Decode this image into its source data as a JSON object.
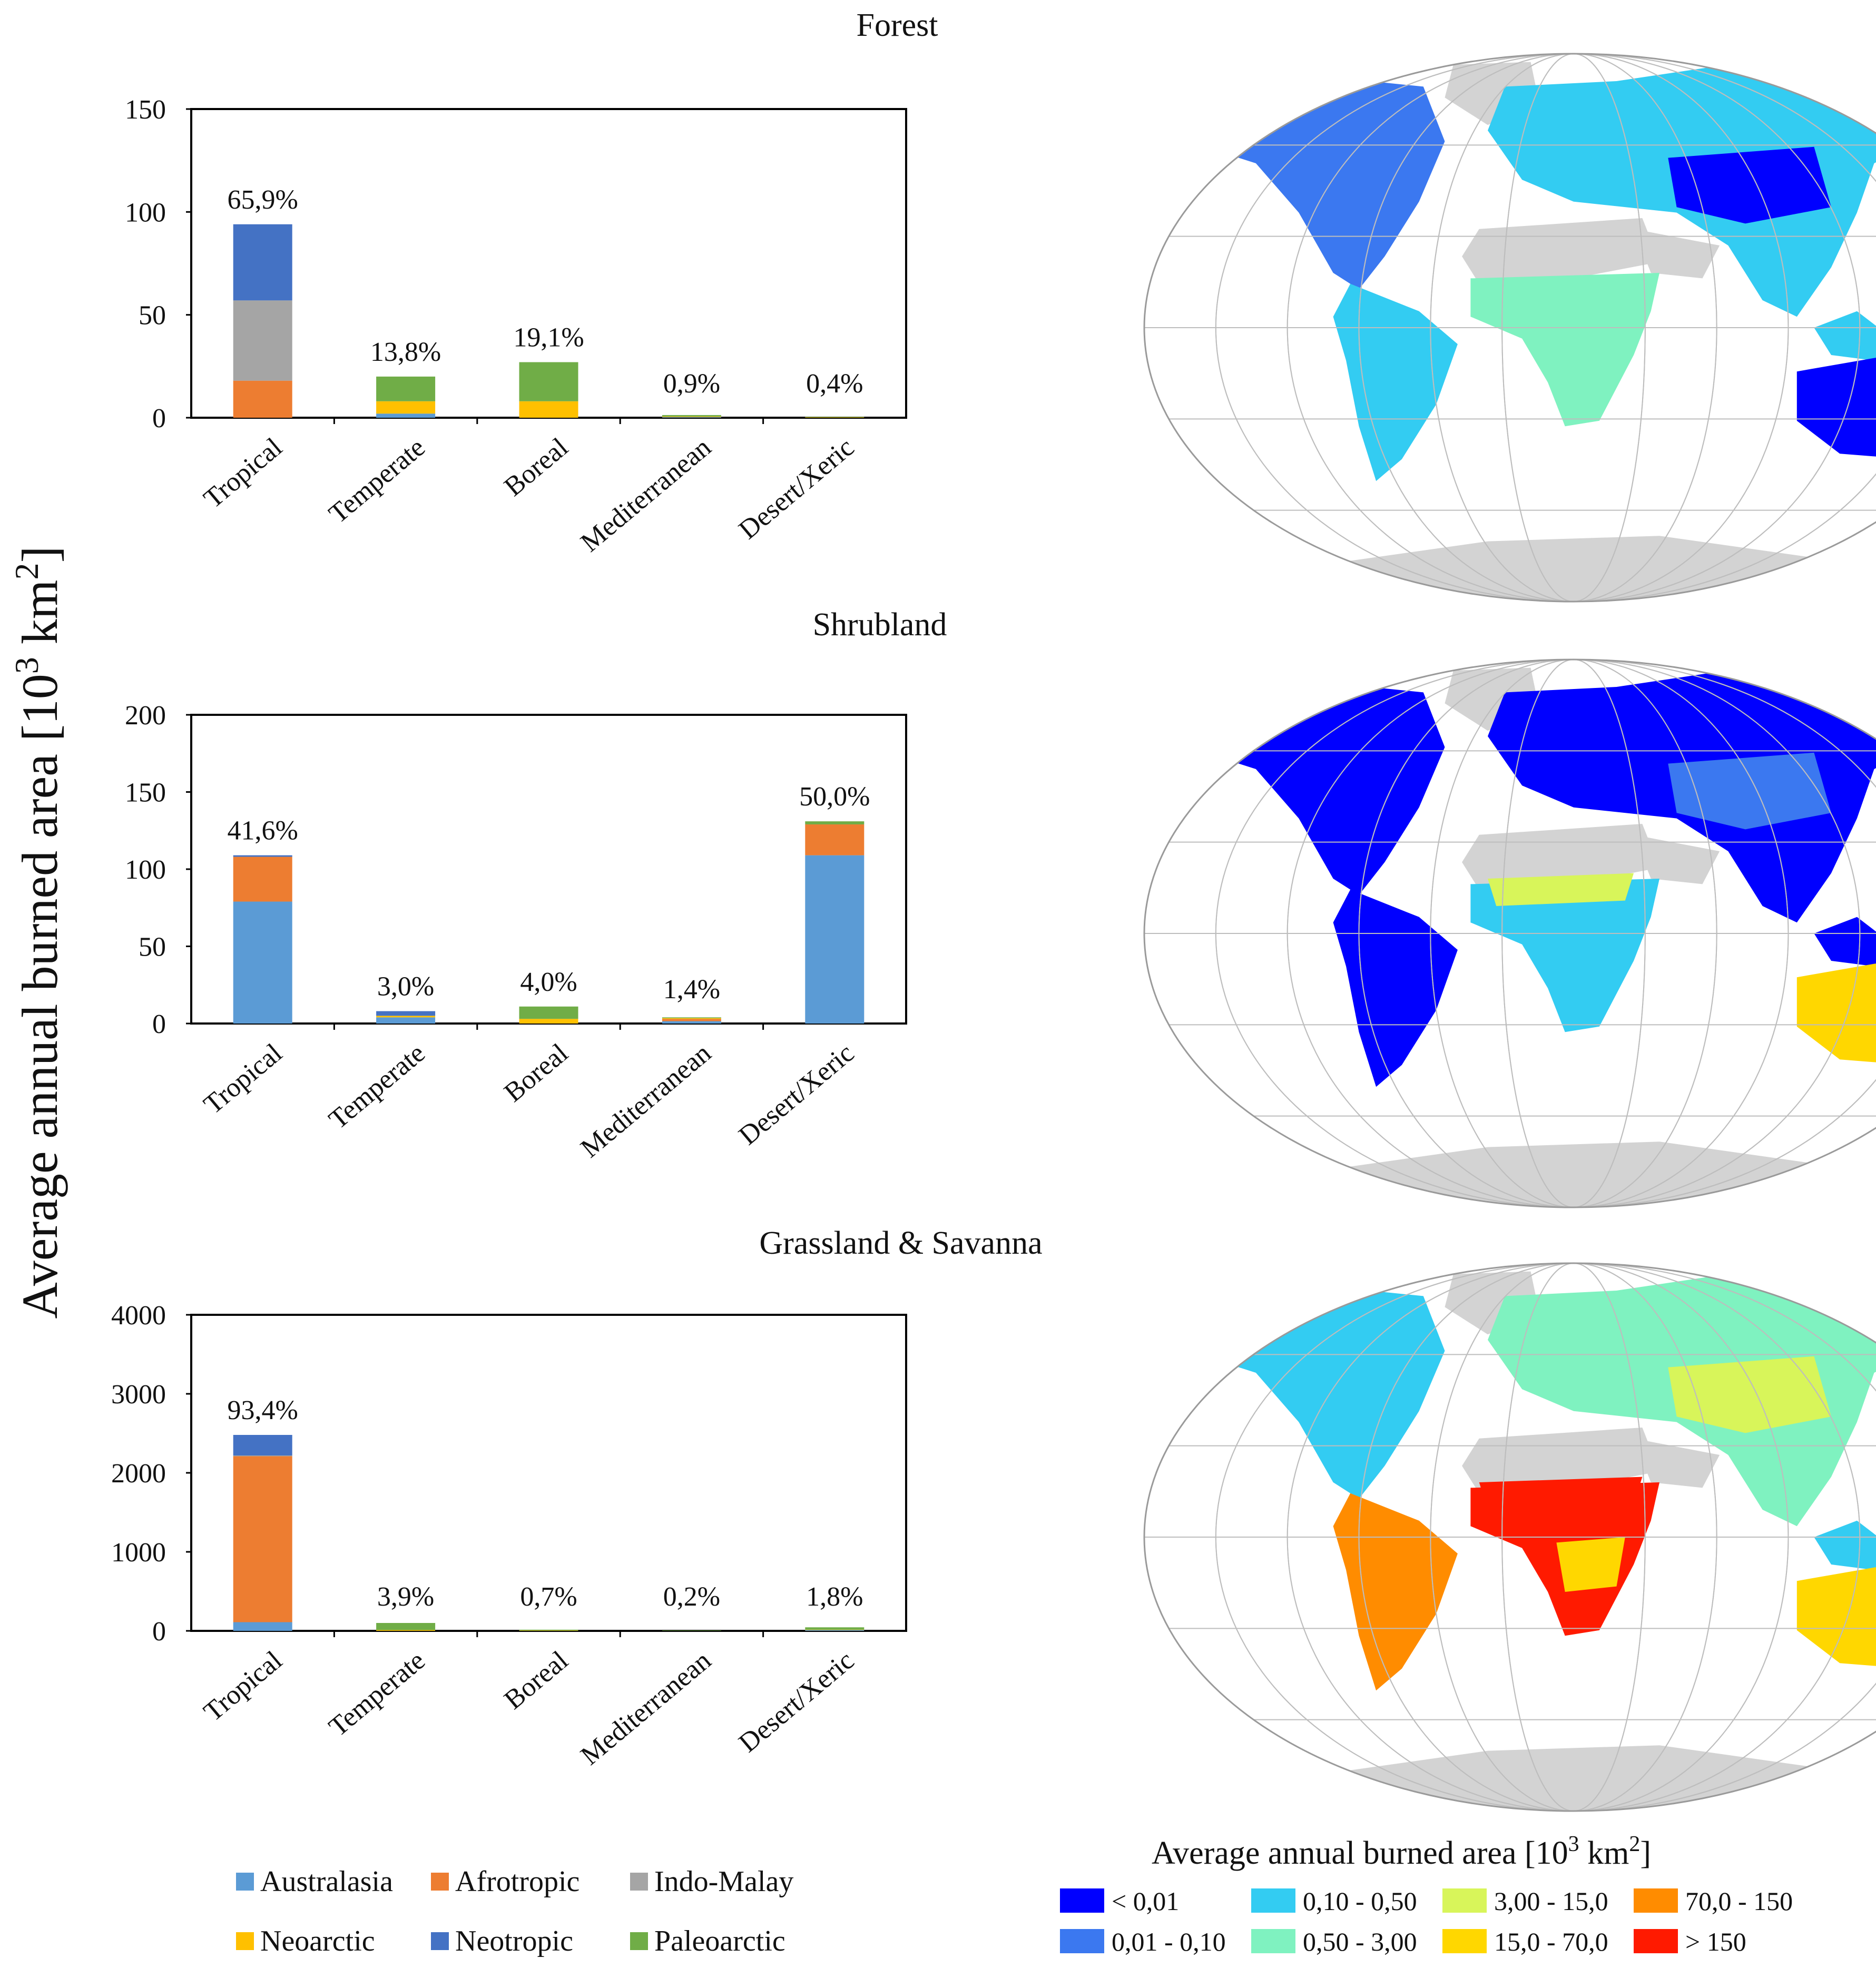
{
  "figure": {
    "ylabel_main": "Average annual burned area [10",
    "ylabel_sup": "3",
    "ylabel_unit": " km",
    "ylabel_sup2": "2",
    "ylabel_end": "]"
  },
  "chart_data": [
    {
      "type": "bar",
      "stacked": true,
      "title": "Forest",
      "categories": [
        "Tropical",
        "Temperate",
        "Boreal",
        "Mediterranean",
        "Desert/Xeric"
      ],
      "ylim": [
        0,
        150
      ],
      "yticks": [
        0,
        50,
        100,
        150
      ],
      "ytick_labels": [
        "0",
        "50",
        "100",
        "150"
      ],
      "percent_labels": [
        "65,9%",
        "13,8%",
        "19,1%",
        "0,9%",
        "0,4%"
      ],
      "series": [
        {
          "name": "Australasia",
          "values": [
            0,
            2,
            0,
            0.3,
            0
          ]
        },
        {
          "name": "Afrotropic",
          "values": [
            18,
            0,
            0,
            0,
            0
          ]
        },
        {
          "name": "Indo-Malay",
          "values": [
            39,
            0,
            0,
            0,
            0
          ]
        },
        {
          "name": "Neoarctic",
          "values": [
            0,
            6,
            8,
            0.3,
            0.2
          ]
        },
        {
          "name": "Neotropic",
          "values": [
            37,
            0,
            0,
            0,
            0
          ]
        },
        {
          "name": "Paleoarctic",
          "values": [
            0,
            12,
            19,
            0.7,
            0.2
          ]
        }
      ]
    },
    {
      "type": "bar",
      "stacked": true,
      "title": "Shrubland",
      "categories": [
        "Tropical",
        "Temperate",
        "Boreal",
        "Mediterranean",
        "Desert/Xeric"
      ],
      "ylim": [
        0,
        200
      ],
      "yticks": [
        0,
        50,
        100,
        150,
        200
      ],
      "ytick_labels": [
        "0",
        "50",
        "100",
        "150",
        "200"
      ],
      "percent_labels": [
        "41,6%",
        "3,0%",
        "4,0%",
        "1,4%",
        "50,0%"
      ],
      "series": [
        {
          "name": "Australasia",
          "values": [
            79,
            4,
            0,
            1.5,
            109
          ]
        },
        {
          "name": "Afrotropic",
          "values": [
            29,
            0,
            0,
            1.5,
            20
          ]
        },
        {
          "name": "Indo-Malay",
          "values": [
            0,
            0,
            0,
            0,
            0
          ]
        },
        {
          "name": "Neoarctic",
          "values": [
            0,
            1,
            3,
            0.5,
            0
          ]
        },
        {
          "name": "Neotropic",
          "values": [
            1,
            3,
            0,
            0,
            0
          ]
        },
        {
          "name": "Paleoarctic",
          "values": [
            0,
            0,
            8,
            0.5,
            2
          ]
        }
      ]
    },
    {
      "type": "bar",
      "stacked": true,
      "title": "Grassland & Savanna",
      "categories": [
        "Tropical",
        "Temperate",
        "Boreal",
        "Mediterranean",
        "Desert/Xeric"
      ],
      "ylim": [
        0,
        4000
      ],
      "yticks": [
        0,
        1000,
        2000,
        3000,
        4000
      ],
      "ytick_labels": [
        "0",
        "1000",
        "2000",
        "3000",
        "4000"
      ],
      "percent_labels": [
        "93,4%",
        "3,9%",
        "0,7%",
        "0,2%",
        "1,8%"
      ],
      "series": [
        {
          "name": "Australasia",
          "values": [
            110,
            0,
            0,
            0,
            10
          ]
        },
        {
          "name": "Afrotropic",
          "values": [
            2100,
            0,
            0,
            0,
            0
          ]
        },
        {
          "name": "Indo-Malay",
          "values": [
            10,
            0,
            0,
            0,
            0
          ]
        },
        {
          "name": "Neoarctic",
          "values": [
            0,
            10,
            5,
            0,
            5
          ]
        },
        {
          "name": "Neotropic",
          "values": [
            260,
            0,
            0,
            0,
            0
          ]
        },
        {
          "name": "Paleoarctic",
          "values": [
            0,
            90,
            10,
            5,
            30
          ]
        }
      ]
    }
  ],
  "series_colors": {
    "Australasia": "#5b9bd5",
    "Afrotropic": "#ed7d31",
    "Indo-Malay": "#a5a5a5",
    "Neoarctic": "#ffc000",
    "Neotropic": "#4472c4",
    "Paleoarctic": "#70ad47"
  },
  "legend": {
    "items": [
      "Australasia",
      "Afrotropic",
      "Indo-Malay",
      "Neoarctic",
      "Neotropic",
      "Paleoarctic"
    ]
  },
  "maps": [
    {
      "name": "Forest burned area map"
    },
    {
      "name": "Shrubland burned area map"
    },
    {
      "name": "Grassland & Savanna burned area map"
    }
  ],
  "map_legend": {
    "title_main": "Average annual burned area [10",
    "title_sup": "3",
    "title_unit": " km",
    "title_sup2": "2",
    "title_end": "]",
    "classes": [
      {
        "label": "< 0,01",
        "color": "#0000ff"
      },
      {
        "label": "0,01 - 0,10",
        "color": "#3b78f0"
      },
      {
        "label": "0,10 - 0,50",
        "color": "#33ccf2"
      },
      {
        "label": "0,50 - 3,00",
        "color": "#7ff2c0"
      },
      {
        "label": "3,00 - 15,0",
        "color": "#d8f55a"
      },
      {
        "label": "15,0 - 70,0",
        "color": "#ffd700"
      },
      {
        "label": "70,0 - 150",
        "color": "#ff8c00"
      },
      {
        "label": "> 150",
        "color": "#ff1a00"
      }
    ]
  }
}
